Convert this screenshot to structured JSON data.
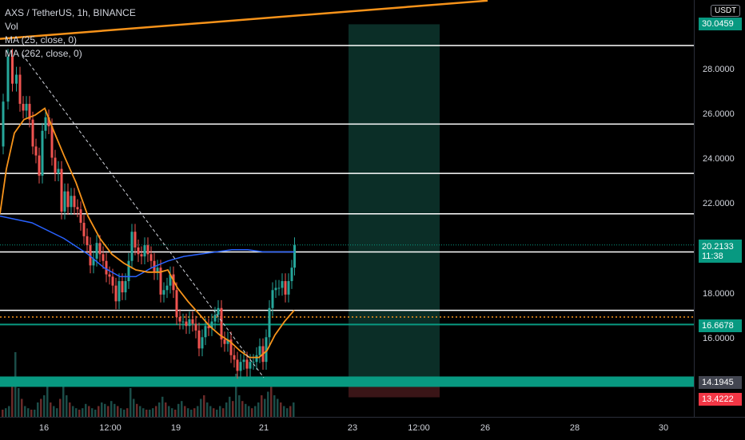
{
  "legend": {
    "symbol": "AXS / TetherUS, 1h, BINANCE",
    "vol": "Vol",
    "ma1": "MA (25, close, 0)",
    "ma2": "MA (262, close, 0)"
  },
  "price_axis": {
    "currency": "USDT",
    "ticks": [
      "28.0000",
      "26.0000",
      "24.0000",
      "22.0000",
      "18.0000",
      "16.0000"
    ]
  },
  "badges": {
    "top": "30.0459",
    "current_price": "20.2133",
    "countdown": "11:38",
    "green_level": "16.6678",
    "gray_level": "14.1945",
    "red_level": "13.4222"
  },
  "time_axis": [
    "16",
    "12:00",
    "19",
    "21",
    "23",
    "12:00",
    "26",
    "28",
    "30"
  ],
  "colors": {
    "up": "#26a69a",
    "down": "#ef5350",
    "ma25": "#f7931a",
    "ma262": "#2962ff",
    "trend": "#f7931a",
    "levels": "#ffffff",
    "teal_band": "#089981"
  },
  "chart_data": {
    "type": "candlestick",
    "symbol": "AXS / TetherUS",
    "interval": "1h",
    "exchange": "BINANCE",
    "y_axis_ticks": [
      28,
      26,
      24,
      22,
      18,
      16
    ],
    "x_axis_ticks": [
      "16",
      "12:00",
      "19",
      "21",
      "23",
      "12:00",
      "26",
      "28",
      "30"
    ],
    "last_price": 20.2133,
    "horizontal_levels": [
      29.1,
      25.6,
      23.4,
      21.6,
      19.9,
      17.3,
      16.6678
    ],
    "dotted_level": 17.0,
    "price_labels": [
      30.0459,
      20.2133,
      16.6678,
      14.1945,
      13.4222
    ],
    "close_path": [
      [
        0,
        24.6
      ],
      [
        6,
        26.6
      ],
      [
        12,
        28.6
      ],
      [
        17,
        27.4
      ],
      [
        22,
        27.8
      ],
      [
        26,
        26.5
      ],
      [
        30,
        26.2
      ],
      [
        34,
        26.5
      ],
      [
        38,
        25.8
      ],
      [
        42,
        24.6
      ],
      [
        46,
        24.2
      ],
      [
        50,
        23.3
      ],
      [
        54,
        25.3
      ],
      [
        58,
        25.9
      ],
      [
        62,
        25.5
      ],
      [
        66,
        24.1
      ],
      [
        70,
        23.4
      ],
      [
        74,
        23.6
      ],
      [
        78,
        21.7
      ],
      [
        82,
        22.6
      ],
      [
        86,
        21.9
      ],
      [
        90,
        22.4
      ],
      [
        94,
        21.9
      ],
      [
        98,
        21.8
      ],
      [
        102,
        21.2
      ],
      [
        106,
        20.6
      ],
      [
        110,
        20.2
      ],
      [
        114,
        19.3
      ],
      [
        118,
        19.6
      ],
      [
        122,
        20.3
      ],
      [
        126,
        19.8
      ],
      [
        130,
        19.5
      ],
      [
        134,
        18.9
      ],
      [
        138,
        18.8
      ],
      [
        142,
        18.4
      ],
      [
        146,
        17.7
      ],
      [
        150,
        18.6
      ],
      [
        154,
        18.1
      ],
      [
        158,
        18.6
      ],
      [
        162,
        19.5
      ],
      [
        166,
        20.8
      ],
      [
        170,
        20.1
      ],
      [
        174,
        19.8
      ],
      [
        178,
        19.7
      ],
      [
        182,
        20.2
      ],
      [
        186,
        19.8
      ],
      [
        190,
        19.5
      ],
      [
        194,
        19.0
      ],
      [
        198,
        19.2
      ],
      [
        202,
        18.0
      ],
      [
        206,
        18.2
      ],
      [
        210,
        18.4
      ],
      [
        214,
        18.9
      ],
      [
        218,
        18.2
      ],
      [
        222,
        17.0
      ],
      [
        226,
        16.8
      ],
      [
        230,
        16.8
      ],
      [
        234,
        16.6
      ],
      [
        238,
        16.9
      ],
      [
        242,
        16.7
      ],
      [
        246,
        16.4
      ],
      [
        250,
        15.6
      ],
      [
        254,
        16.1
      ],
      [
        258,
        16.6
      ],
      [
        262,
        16.5
      ],
      [
        266,
        16.8
      ],
      [
        270,
        17.1
      ],
      [
        274,
        17.4
      ],
      [
        278,
        16.0
      ],
      [
        282,
        15.8
      ],
      [
        286,
        16.0
      ],
      [
        290,
        15.3
      ],
      [
        294,
        15.1
      ],
      [
        298,
        14.6
      ],
      [
        302,
        15.0
      ],
      [
        306,
        15.1
      ],
      [
        310,
        14.7
      ],
      [
        314,
        15.0
      ],
      [
        318,
        15.0
      ],
      [
        322,
        15.3
      ],
      [
        326,
        15.7
      ],
      [
        330,
        15.0
      ],
      [
        334,
        16.1
      ],
      [
        338,
        17.4
      ],
      [
        342,
        18.2
      ],
      [
        346,
        18.3
      ],
      [
        350,
        18.3
      ],
      [
        354,
        18.6
      ],
      [
        358,
        18.0
      ],
      [
        362,
        18.6
      ],
      [
        366,
        19.2
      ],
      [
        369,
        20.2
      ]
    ],
    "ma25": [
      [
        0,
        21.6
      ],
      [
        8,
        23.6
      ],
      [
        18,
        25.2
      ],
      [
        30,
        25.8
      ],
      [
        44,
        26.0
      ],
      [
        56,
        26.3
      ],
      [
        66,
        25.4
      ],
      [
        80,
        24.2
      ],
      [
        95,
        23.0
      ],
      [
        110,
        21.5
      ],
      [
        125,
        20.5
      ],
      [
        140,
        19.8
      ],
      [
        155,
        19.4
      ],
      [
        170,
        19.1
      ],
      [
        185,
        19.0
      ],
      [
        200,
        19.0
      ],
      [
        210,
        19.1
      ],
      [
        222,
        18.3
      ],
      [
        235,
        17.7
      ],
      [
        250,
        17.1
      ],
      [
        262,
        16.6
      ],
      [
        275,
        16.2
      ],
      [
        288,
        15.9
      ],
      [
        300,
        15.5
      ],
      [
        312,
        15.2
      ],
      [
        324,
        15.2
      ],
      [
        334,
        15.5
      ],
      [
        344,
        16.2
      ],
      [
        356,
        16.8
      ],
      [
        368,
        17.3
      ]
    ],
    "ma262": [
      [
        0,
        21.5
      ],
      [
        40,
        21.2
      ],
      [
        80,
        20.5
      ],
      [
        110,
        19.8
      ],
      [
        130,
        19.2
      ],
      [
        150,
        18.8
      ],
      [
        170,
        18.8
      ],
      [
        190,
        19.2
      ],
      [
        210,
        19.5
      ],
      [
        230,
        19.7
      ],
      [
        250,
        19.8
      ],
      [
        270,
        19.9
      ],
      [
        290,
        20.0
      ],
      [
        310,
        20.0
      ],
      [
        330,
        19.9
      ],
      [
        368,
        19.9
      ]
    ],
    "dashed_trendline": [
      [
        28,
        28.7
      ],
      [
        330,
        14.3
      ]
    ],
    "upper_trendline": [
      [
        0,
        29.4
      ],
      [
        610,
        31.1
      ]
    ],
    "volume": {
      "start_x": 2,
      "step": 4,
      "values": [
        0.1,
        0.12,
        0.15,
        0.55,
        0.9,
        0.4,
        0.25,
        0.15,
        0.12,
        0.1,
        0.1,
        0.2,
        0.25,
        0.3,
        0.5,
        0.2,
        0.15,
        0.12,
        0.25,
        0.55,
        0.3,
        0.2,
        0.15,
        0.12,
        0.1,
        0.12,
        0.18,
        0.15,
        0.12,
        0.1,
        0.15,
        0.2,
        0.18,
        0.15,
        0.22,
        0.18,
        0.15,
        0.12,
        0.1,
        0.12,
        0.4,
        0.25,
        0.18,
        0.15,
        0.12,
        0.1,
        0.1,
        0.12,
        0.15,
        0.2,
        0.28,
        0.2,
        0.15,
        0.12,
        0.1,
        0.18,
        0.22,
        0.15,
        0.12,
        0.1,
        0.12,
        0.15,
        0.25,
        0.3,
        0.2,
        0.15,
        0.12,
        0.1,
        0.15,
        0.12,
        0.2,
        0.28,
        0.22,
        0.6,
        0.3,
        0.22,
        0.18,
        0.15,
        0.12,
        0.15,
        0.2,
        0.3,
        0.25,
        0.35,
        0.5,
        0.3,
        0.25,
        0.2,
        0.15,
        0.12,
        0.15,
        0.2
      ]
    },
    "projection_box": {
      "x_from": 436,
      "x_to": 550,
      "price_top": 30.0459,
      "price_bottom": 14.1945,
      "loss_bottom": 13.4222
    }
  }
}
